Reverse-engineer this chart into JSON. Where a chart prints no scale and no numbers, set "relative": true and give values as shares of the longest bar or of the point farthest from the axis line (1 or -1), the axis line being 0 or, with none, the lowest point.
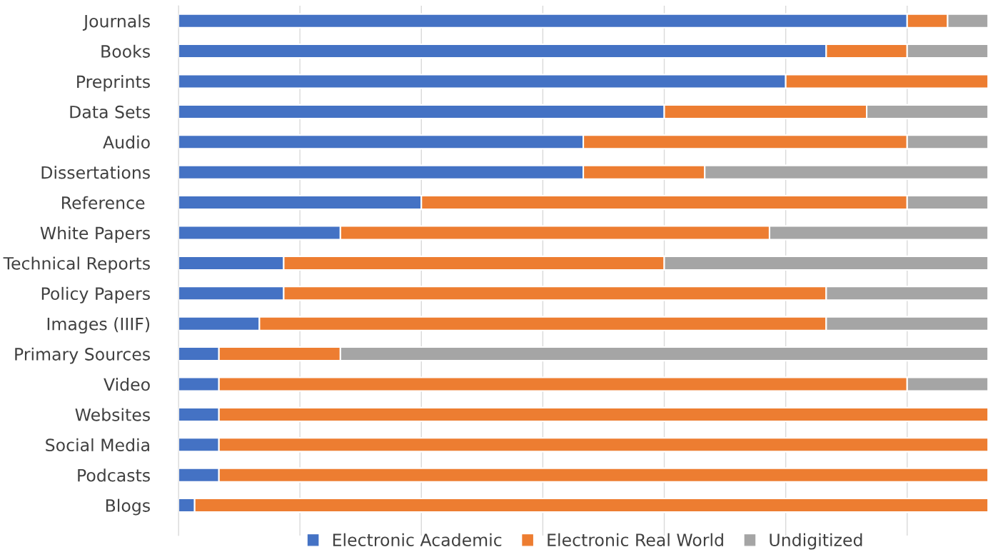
{
  "chart_data": {
    "type": "bar",
    "orientation": "horizontal",
    "stacked": true,
    "relative": true,
    "grid": "x",
    "legend": "bottom",
    "categories": [
      "Journals",
      "Books",
      "Preprints",
      "Data Sets",
      "Audio",
      "Dissertations",
      "Reference ",
      "White Papers",
      "Technical Reports",
      "Policy Papers",
      "Images (IIIF)",
      "Primary Sources",
      "Video",
      "Websites",
      "Social Media",
      "Podcasts",
      "Blogs"
    ],
    "series": [
      {
        "name": "Electronic Academic",
        "color": "#4472c4",
        "values": [
          0.9,
          0.8,
          0.75,
          0.6,
          0.5,
          0.5,
          0.3,
          0.2,
          0.13,
          0.13,
          0.1,
          0.05,
          0.05,
          0.05,
          0.05,
          0.05,
          0.02
        ]
      },
      {
        "name": "Electronic Real World",
        "color": "#ed7d31",
        "values": [
          0.05,
          0.1,
          0.25,
          0.25,
          0.4,
          0.15,
          0.6,
          0.53,
          0.47,
          0.67,
          0.7,
          0.15,
          0.85,
          0.95,
          0.95,
          0.95,
          0.98
        ]
      },
      {
        "name": "Undigitized",
        "color": "#a5a5a5",
        "values": [
          0.05,
          0.1,
          null,
          0.15,
          0.1,
          0.35,
          0.1,
          0.27,
          0.4,
          0.2,
          0.2,
          0.8,
          0.1,
          null,
          null,
          null,
          null
        ]
      }
    ]
  }
}
